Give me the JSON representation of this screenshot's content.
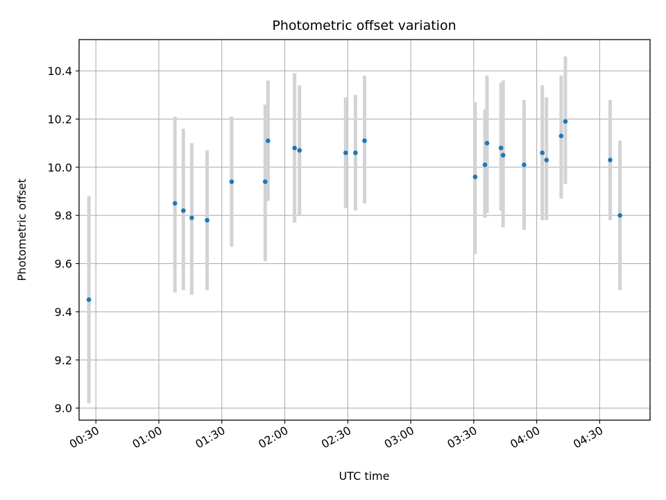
{
  "chart_data": {
    "type": "scatter",
    "title": "Photometric offset variation",
    "xlabel": "UTC time",
    "ylabel": "Photometric offset",
    "x_axis_kind": "time (HH:MM, UTC)",
    "xlim": [
      "00:22",
      "04:54"
    ],
    "ylim": [
      8.95,
      10.53
    ],
    "grid": true,
    "point_color": "#1f77b4",
    "errorbar_color": "#d3d3d3",
    "x_ticks": [
      "00:30",
      "01:00",
      "01:30",
      "02:00",
      "02:30",
      "03:00",
      "03:30",
      "04:00",
      "04:30"
    ],
    "y_ticks": [
      "9.0",
      "9.2",
      "9.4",
      "9.6",
      "9.8",
      "10.0",
      "10.2",
      "10.4"
    ],
    "points": [
      {
        "x": "00:26:40",
        "y": 9.45,
        "ylow": 9.02,
        "yhigh": 9.88
      },
      {
        "x": "01:07:40",
        "y": 9.85,
        "ylow": 9.48,
        "yhigh": 10.21
      },
      {
        "x": "01:11:40",
        "y": 9.82,
        "ylow": 9.49,
        "yhigh": 10.16
      },
      {
        "x": "01:15:40",
        "y": 9.79,
        "ylow": 9.47,
        "yhigh": 10.1
      },
      {
        "x": "01:23:00",
        "y": 9.78,
        "ylow": 9.49,
        "yhigh": 10.07
      },
      {
        "x": "01:34:40",
        "y": 9.94,
        "ylow": 9.67,
        "yhigh": 10.21
      },
      {
        "x": "01:50:40",
        "y": 9.94,
        "ylow": 9.61,
        "yhigh": 10.26
      },
      {
        "x": "01:52:00",
        "y": 10.11,
        "ylow": 9.86,
        "yhigh": 10.36
      },
      {
        "x": "02:04:40",
        "y": 10.08,
        "ylow": 9.77,
        "yhigh": 10.39
      },
      {
        "x": "02:07:00",
        "y": 10.07,
        "ylow": 9.8,
        "yhigh": 10.34
      },
      {
        "x": "02:29:00",
        "y": 10.06,
        "ylow": 9.83,
        "yhigh": 10.29
      },
      {
        "x": "02:33:40",
        "y": 10.06,
        "ylow": 9.82,
        "yhigh": 10.3
      },
      {
        "x": "02:38:00",
        "y": 10.11,
        "ylow": 9.85,
        "yhigh": 10.38
      },
      {
        "x": "03:30:40",
        "y": 9.96,
        "ylow": 9.64,
        "yhigh": 10.27
      },
      {
        "x": "03:35:20",
        "y": 10.01,
        "ylow": 9.79,
        "yhigh": 10.24
      },
      {
        "x": "03:36:20",
        "y": 10.1,
        "ylow": 9.81,
        "yhigh": 10.38
      },
      {
        "x": "03:43:00",
        "y": 10.08,
        "ylow": 9.82,
        "yhigh": 10.35
      },
      {
        "x": "03:44:00",
        "y": 10.05,
        "ylow": 9.75,
        "yhigh": 10.36
      },
      {
        "x": "03:54:00",
        "y": 10.01,
        "ylow": 9.74,
        "yhigh": 10.28
      },
      {
        "x": "04:02:40",
        "y": 10.06,
        "ylow": 9.78,
        "yhigh": 10.34
      },
      {
        "x": "04:04:40",
        "y": 10.03,
        "ylow": 9.78,
        "yhigh": 10.29
      },
      {
        "x": "04:11:40",
        "y": 10.13,
        "ylow": 9.87,
        "yhigh": 10.38
      },
      {
        "x": "04:13:40",
        "y": 10.19,
        "ylow": 9.93,
        "yhigh": 10.46
      },
      {
        "x": "04:35:00",
        "y": 10.03,
        "ylow": 9.78,
        "yhigh": 10.28
      },
      {
        "x": "04:39:40",
        "y": 9.8,
        "ylow": 9.49,
        "yhigh": 10.11
      }
    ]
  }
}
